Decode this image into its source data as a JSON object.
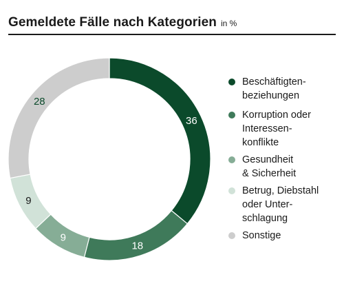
{
  "header": {
    "title": "Gemeldete Fälle nach Kategorien",
    "unit": "in %"
  },
  "chart_data": {
    "type": "pie",
    "subtype": "donut",
    "categories": [
      "Beschäftigten-\nbeziehungen",
      "Korruption oder\nInteressen-\nkonflikte",
      "Gesundheit\n& Sicherheit",
      "Betrug, Diebstahl\noder Unter-\nschlagung",
      "Sonstige"
    ],
    "values": [
      36,
      18,
      9,
      9,
      28
    ],
    "colors": [
      "#0b4a2b",
      "#3f7a5a",
      "#86ad96",
      "#d1e2d8",
      "#cdcdcd"
    ],
    "label_colors": [
      "#ffffff",
      "#ffffff",
      "#ffffff",
      "#1a1a1a",
      "#0b4a2b"
    ],
    "legend_position": "right"
  }
}
